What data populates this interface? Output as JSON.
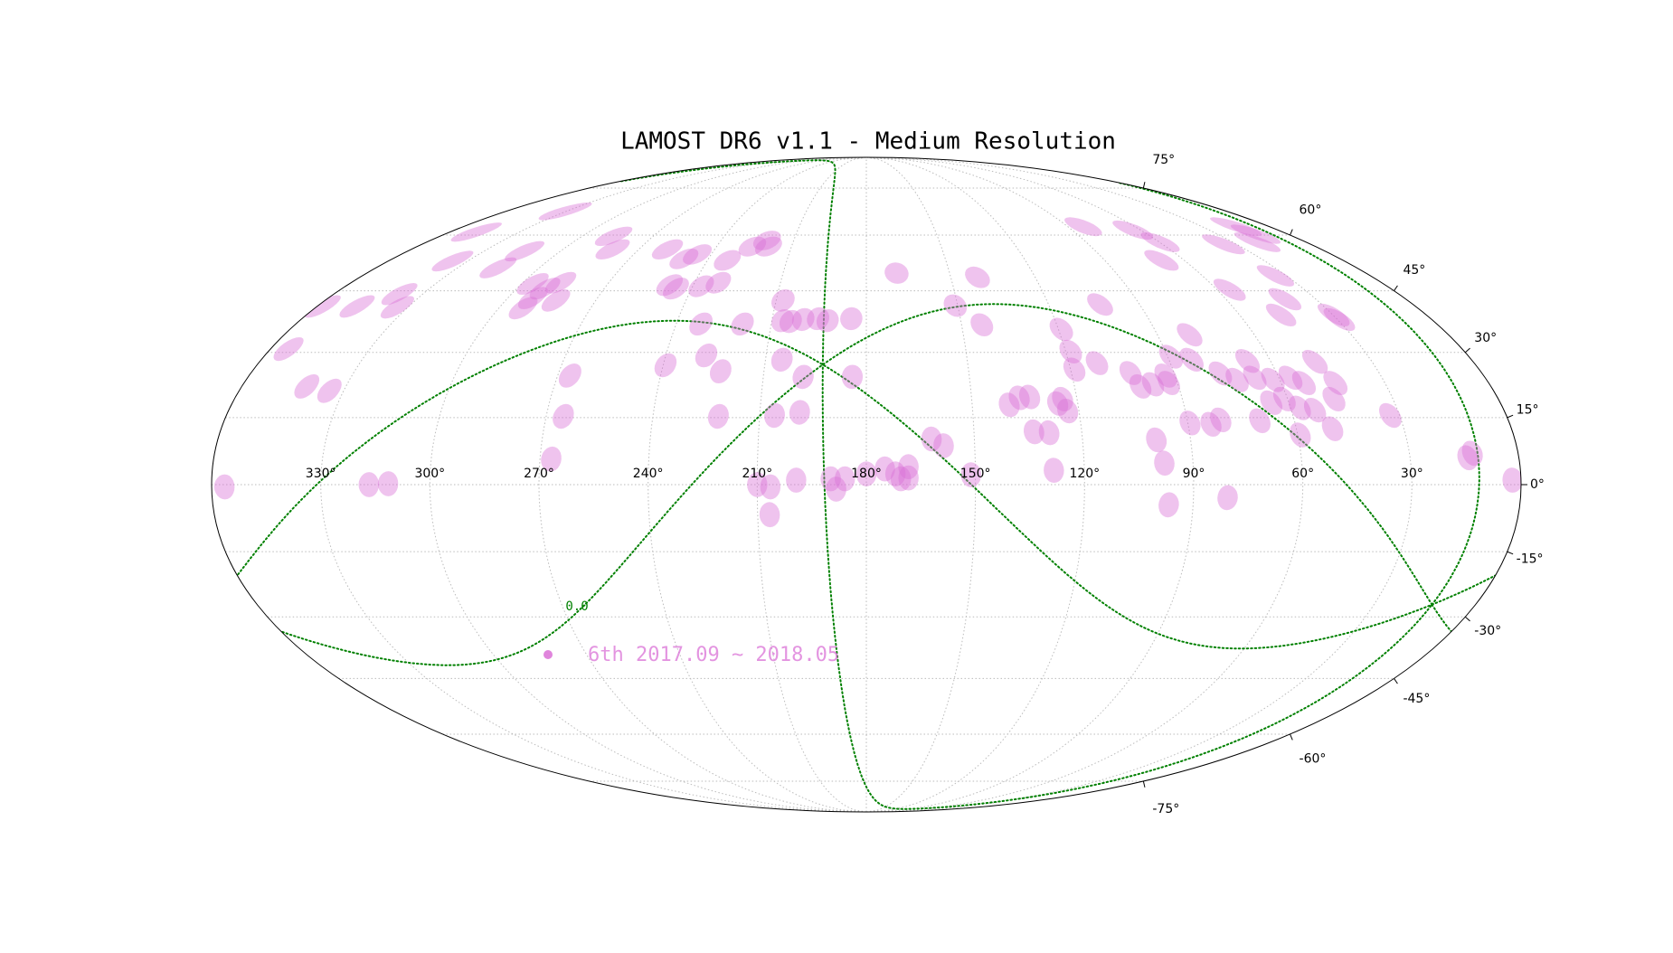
{
  "chart_data": {
    "type": "sky-map",
    "projection": "mollweide",
    "title": "LAMOST DR6 v1.1 - Medium Resolution",
    "x": [
      356.5,
      316.8,
      311.5,
      2.3,
      14.1,
      12.6,
      210,
      206.4,
      206.7,
      199.3,
      189.8,
      188.3,
      185.9,
      180,
      174.9,
      172,
      170.5,
      168.4,
      168.4,
      161.9,
      158.6,
      151.2,
      128.4,
      133.3,
      129.1,
      139.5,
      136.4,
      133.4,
      125.7,
      123.2,
      124.1,
      118.9,
      118.5,
      119.1,
      111.7,
      103,
      102.7,
      101,
      97.2,
      92.5,
      92.7,
      89,
      80,
      83.2,
      76.5,
      72.4,
      66.8,
      67,
      62,
      56.6,
      53.4,
      46.9,
      44.3,
      46.8,
      53.3,
      57.4,
      60.9,
      65,
      69.7,
      59.3,
      49.9,
      32.6,
      89.4,
      83.6,
      80.6,
      99.5,
      97.9,
      96.7,
      80.6,
      29.3,
      29.7,
      46.6,
      40.3,
      33.8,
      55.6,
      35.2,
      19.8,
      13.5,
      59.6,
      68.5,
      63.3,
      83,
      14.6,
      140.5,
      150.8,
      143.6,
      169.1,
      184.8,
      192.3,
      195.4,
      200.1,
      204,
      206.6,
      207.7,
      205.1,
      184.1,
      198.4,
      198.8,
      205.8,
      221.6,
      222.7,
      227.9,
      239.3,
      219.1,
      232.2,
      237.1,
      231.7,
      248.3,
      245.4,
      232.5,
      225.7,
      219.2,
      221,
      245.4,
      249.3,
      258.7,
      280.4,
      286.8,
      266.4,
      265.2,
      266.9,
      292.1,
      291.6,
      283.3,
      290.4,
      286.8,
      296.2,
      314.2,
      315.3,
      335.9,
      348.8,
      338,
      333.5,
      347,
      358.4,
      354.6,
      341.3,
      334.1,
      330.8
    ],
    "series": [
      {
        "name": "6th 2017.09 ~ 2018.05",
        "color": "#da70d6",
        "values": [
          -0.5,
          0,
          0.2,
          1,
          6,
          7,
          0,
          -0.5,
          -6.7,
          1,
          1.3,
          -1,
          1.3,
          2.4,
          3.5,
          2.4,
          1.3,
          4,
          1.5,
          10.2,
          8.7,
          2.2,
          3.2,
          11.8,
          11.6,
          17.9,
          19.5,
          19.7,
          18.2,
          16.5,
          19.2,
          26,
          30.2,
          35.5,
          27.5,
          41.6,
          25.2,
          22.1,
          22.6,
          22.9,
          24.6,
          29,
          34.2,
          28.3,
          25.1,
          23.6,
          28,
          24.1,
          23.6,
          24.1,
          22.9,
          27.8,
          22.9,
          19.2,
          16.7,
          17.2,
          19.2,
          18.4,
          14.3,
          11.1,
          12.5,
          15.5,
          13.8,
          13.5,
          14.5,
          10,
          4.8,
          -4.5,
          -2.9,
          37.9,
          39,
          39,
          42.9,
          48.9,
          45.3,
          57.4,
          58,
          60.3,
          58,
          53,
          61.5,
          62.5,
          62.5,
          48.5,
          41.3,
          36.6,
          49.6,
          38.1,
          37.6,
          38.1,
          37.9,
          37.4,
          37.6,
          42.6,
          28.3,
          24.3,
          24.3,
          16.2,
          15.5,
          15.3,
          25.6,
          29.3,
          27,
          36.8,
          36.8,
          46.2,
          47.1,
          46.5,
          45.6,
          53,
          56.8,
          56.8,
          58.5,
          54.6,
          53.4,
          56,
          56,
          59.7,
          24.6,
          15.3,
          5.7,
          40.7,
          43.2,
          42.6,
          45.6,
          47.1,
          46.8,
          55.5,
          51,
          52.8,
          60.9,
          44.2,
          40.9,
          41.1,
          41.1,
          30.8,
          22.1,
          21.1,
          67.2
        ]
      }
    ],
    "xlim": [
      360,
      0
    ],
    "ylim": [
      -90,
      90
    ],
    "xticks": [
      {
        "value": 330,
        "label": "330°"
      },
      {
        "value": 300,
        "label": "300°"
      },
      {
        "value": 270,
        "label": "270°"
      },
      {
        "value": 240,
        "label": "240°"
      },
      {
        "value": 210,
        "label": "210°"
      },
      {
        "value": 180,
        "label": "180°"
      },
      {
        "value": 150,
        "label": "150°"
      },
      {
        "value": 120,
        "label": "120°"
      },
      {
        "value": 90,
        "label": "90°"
      },
      {
        "value": 60,
        "label": "60°"
      },
      {
        "value": 30,
        "label": "30°"
      }
    ],
    "yticks": [
      {
        "value": 75,
        "label": "75°"
      },
      {
        "value": 60,
        "label": "60°"
      },
      {
        "value": 45,
        "label": "45°"
      },
      {
        "value": 30,
        "label": "30°"
      },
      {
        "value": 15,
        "label": "15°"
      },
      {
        "value": 0,
        "label": "0°"
      },
      {
        "value": -15,
        "label": "-15°"
      },
      {
        "value": -30,
        "label": "-30°"
      },
      {
        "value": -45,
        "label": "-45°"
      },
      {
        "value": -60,
        "label": "-60°"
      },
      {
        "value": -75,
        "label": "-75°"
      }
    ],
    "grid": true,
    "galactic_label": {
      "value": 0,
      "label": "0.0"
    }
  }
}
